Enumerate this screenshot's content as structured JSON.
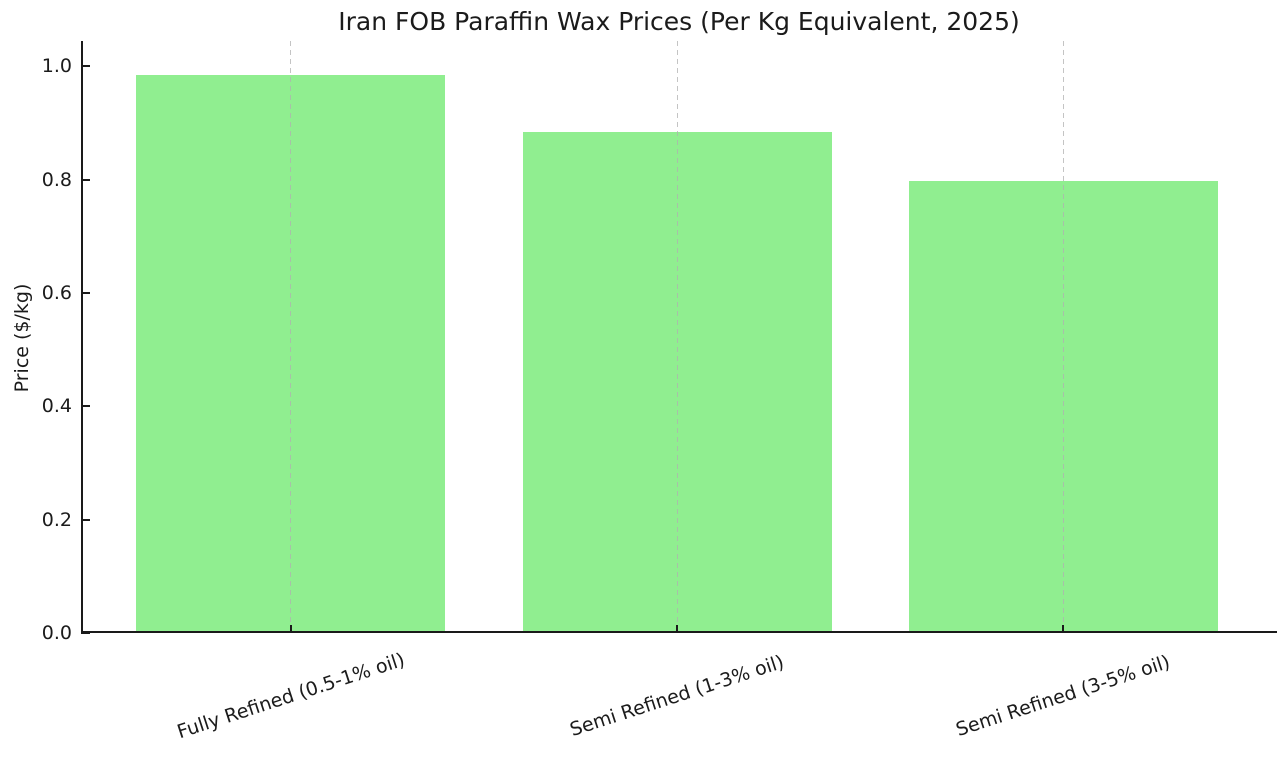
{
  "chart_data": {
    "type": "bar",
    "title": "Iran FOB Paraffin Wax Prices (Per Kg Equivalent, 2025)",
    "xlabel": "",
    "ylabel": "Price ($/kg)",
    "categories": [
      "Fully Refined (0.5-1% oil)",
      "Semi Refined (1-3% oil)",
      "Semi Refined (3-5% oil)"
    ],
    "values": [
      0.985,
      0.885,
      0.7975
    ],
    "ytick_values": [
      0.0,
      0.2,
      0.4,
      0.6,
      0.8,
      1.0
    ],
    "ytick_labels": [
      "0.0",
      "0.2",
      "0.4",
      "0.6",
      "0.8",
      "1.0"
    ],
    "ylim": [
      0,
      1.045
    ],
    "bar_color": "#90ee90",
    "grid": "vertical dashed gridlines at each bar center, drawn over bars",
    "grid_color": "#b0b0b0",
    "axis_color": "#1a1a1a",
    "text_color": "#1b1b1b",
    "background_color": "#ffffff",
    "legend": "none",
    "xtick_rotation_deg": 18,
    "tick_direction": "in"
  }
}
